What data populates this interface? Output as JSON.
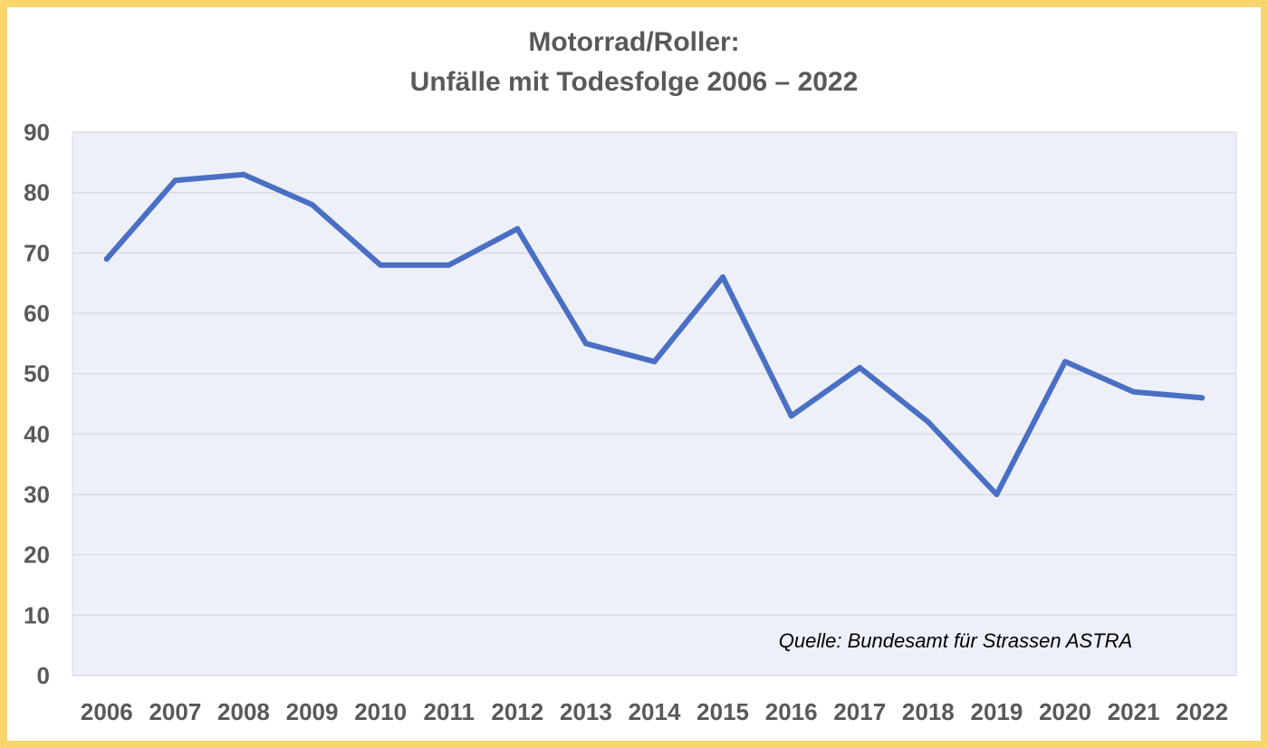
{
  "chart_data": {
    "type": "line",
    "title_lines": [
      "Motorrad/Roller:",
      "Unfälle mit Todesfolge 2006 – 2022"
    ],
    "xlabel": "",
    "ylabel": "",
    "categories": [
      "2006",
      "2007",
      "2008",
      "2009",
      "2010",
      "2011",
      "2012",
      "2013",
      "2014",
      "2015",
      "2016",
      "2017",
      "2018",
      "2019",
      "2020",
      "2021",
      "2022"
    ],
    "series": [
      {
        "values": [
          69,
          82,
          83,
          78,
          68,
          68,
          74,
          55,
          52,
          66,
          43,
          51,
          42,
          30,
          52,
          47,
          46
        ]
      }
    ],
    "ylim": [
      0,
      90
    ],
    "yticks": [
      0,
      10,
      20,
      30,
      40,
      50,
      60,
      70,
      80,
      90
    ],
    "grid": true,
    "legend": "none",
    "annotation": "Quelle: Bundesamt für Strassen ASTRA",
    "colors": {
      "line": "#4a6fc4",
      "plot_background": "#edf0f8",
      "grid": "#d4d7de",
      "frame_border": "#f9d56b",
      "text": "#595959"
    }
  }
}
